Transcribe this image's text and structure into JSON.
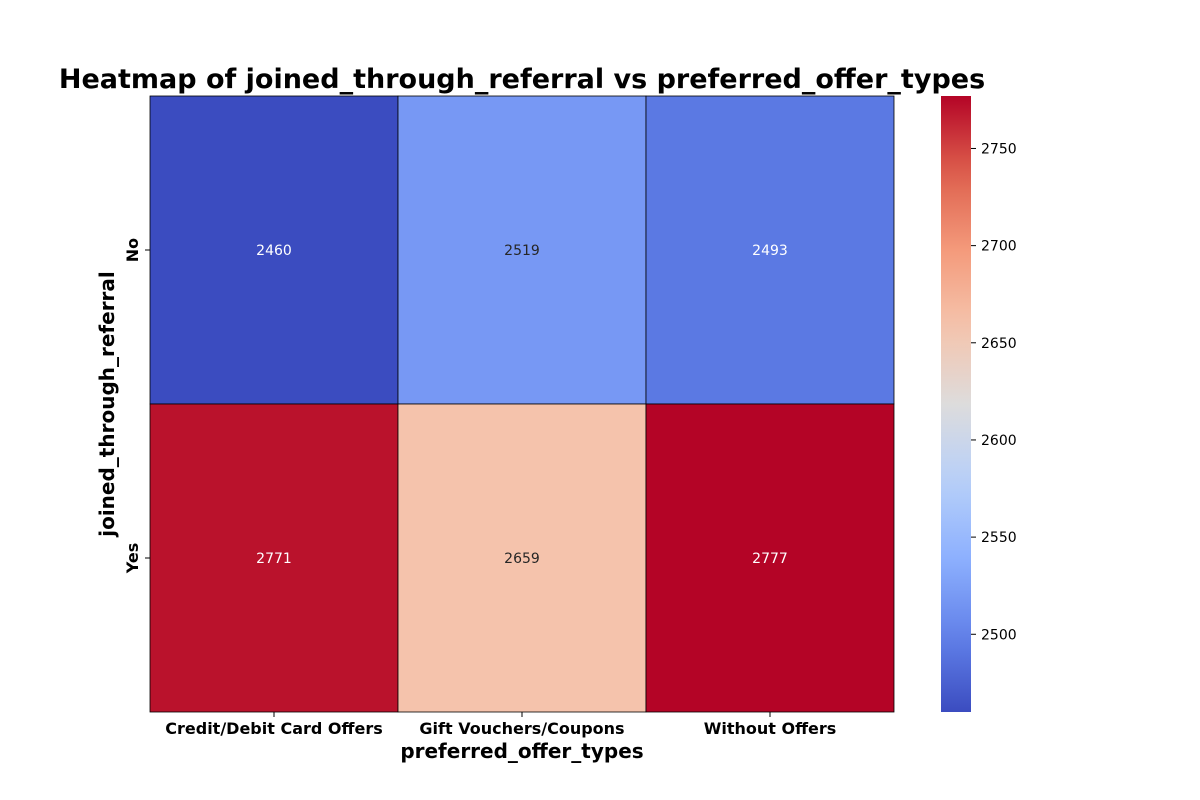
{
  "chart_data": {
    "type": "heatmap",
    "title": "Heatmap of joined_through_referral vs preferred_offer_types",
    "xlabel": "preferred_offer_types",
    "ylabel": "joined_through_referral",
    "x_categories": [
      "Credit/Debit Card Offers",
      "Gift Vouchers/Coupons",
      "Without Offers"
    ],
    "y_categories": [
      "No",
      "Yes"
    ],
    "values": [
      [
        2460,
        2519,
        2493
      ],
      [
        2771,
        2659,
        2777
      ]
    ],
    "colormap": "coolwarm",
    "color_range": [
      2460,
      2777
    ],
    "colorbar_ticks": [
      2500,
      2550,
      2600,
      2650,
      2700,
      2750
    ],
    "colorbar_tick_labels": [
      "2500",
      "2550",
      "2600",
      "2650",
      "2700",
      "2750"
    ],
    "cell_border_color": "#000000",
    "grid": false,
    "legend": "colorbar-right"
  }
}
